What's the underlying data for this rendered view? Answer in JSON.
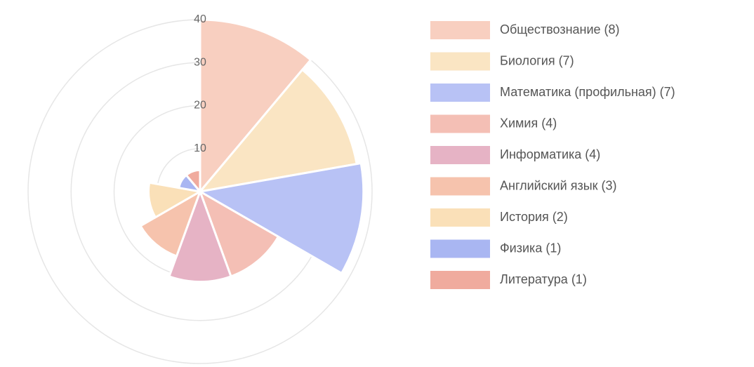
{
  "chart_data": {
    "type": "polarArea",
    "categories": [
      "Обществознание (8)",
      "Биология (7)",
      "Математика (профильная) (7)",
      "Химия (4)",
      "Информатика (4)",
      "Английский язык (3)",
      "История (2)",
      "Физика (1)",
      "Литература (1)"
    ],
    "values": [
      40,
      37,
      38,
      21,
      21,
      16,
      12,
      5,
      5
    ],
    "colors": [
      "#f8cfc0",
      "#fae5c3",
      "#b8c2f5",
      "#f4bfb5",
      "#e6b3c5",
      "#f6c3ad",
      "#fae0b8",
      "#a9b6f2",
      "#f0ab9e"
    ],
    "ylim": [
      0,
      40
    ],
    "yticks": [
      10,
      20,
      30,
      40
    ],
    "grid": true,
    "legend": "right"
  }
}
